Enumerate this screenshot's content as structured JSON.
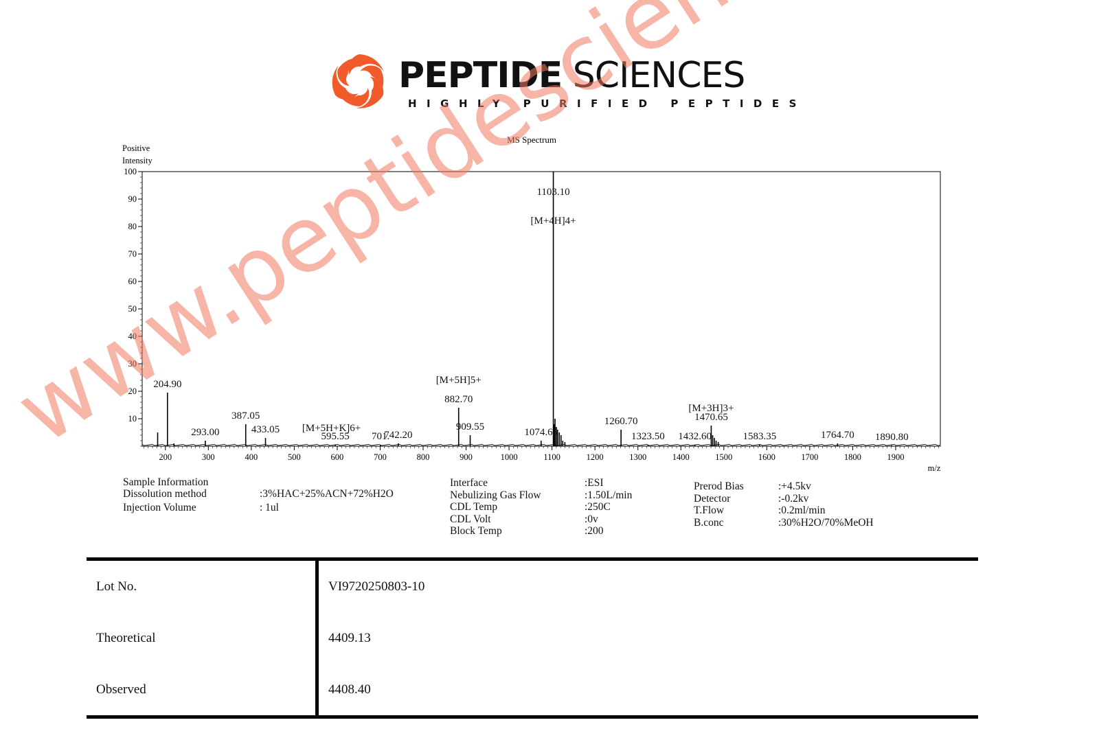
{
  "header": {
    "brand_bold": "PEPTIDE",
    "brand_light": "SCIENCES",
    "tagline": "HIGHLY PURIFIED PEPTIDES",
    "brand_color": "#f15a2b"
  },
  "chart_data": {
    "type": "line",
    "title": "MS Spectrum",
    "ylabel_line1": "Positive",
    "ylabel_line2": "Intensity",
    "xlabel": "m/z",
    "xlim": [
      146,
      2004
    ],
    "ylim": [
      0,
      100
    ],
    "xticks": [
      200,
      300,
      400,
      500,
      600,
      700,
      800,
      900,
      1000,
      1100,
      1200,
      1300,
      1400,
      1500,
      1600,
      1700,
      1800,
      1900
    ],
    "yticks": [
      10,
      20,
      30,
      40,
      50,
      60,
      70,
      80,
      90,
      100
    ],
    "peaks": [
      {
        "mz": 182,
        "intensity": 5
      },
      {
        "mz": 204.9,
        "intensity": 19.5,
        "label": "204.90"
      },
      {
        "mz": 220,
        "intensity": 1
      },
      {
        "mz": 293.0,
        "intensity": 2,
        "label": "293.00"
      },
      {
        "mz": 387.05,
        "intensity": 8,
        "label": "387.05"
      },
      {
        "mz": 433.05,
        "intensity": 3,
        "label": "433.05"
      },
      {
        "mz": 595.55,
        "intensity": 0.5,
        "label": "595.55"
      },
      {
        "mz": 701,
        "intensity": 0.5,
        "label": "701."
      },
      {
        "mz": 742.2,
        "intensity": 1,
        "label": "742.20",
        "ion": "[M+5H+K]6+"
      },
      {
        "mz": 882.7,
        "intensity": 14,
        "label": "882.70",
        "ion": "[M+5H]5+"
      },
      {
        "mz": 909.55,
        "intensity": 4,
        "label": "909.55"
      },
      {
        "mz": 1074.65,
        "intensity": 2,
        "label": "1074.65"
      },
      {
        "mz": 1103.1,
        "intensity": 100,
        "label": "1103.10",
        "ion": "[M+4H]4+"
      },
      {
        "mz": 1105,
        "intensity": 8
      },
      {
        "mz": 1107,
        "intensity": 10
      },
      {
        "mz": 1110,
        "intensity": 7
      },
      {
        "mz": 1113,
        "intensity": 6
      },
      {
        "mz": 1117,
        "intensity": 5
      },
      {
        "mz": 1121,
        "intensity": 4
      },
      {
        "mz": 1125,
        "intensity": 2
      },
      {
        "mz": 1130,
        "intensity": 1.5
      },
      {
        "mz": 1260.7,
        "intensity": 6,
        "label": "1260.70"
      },
      {
        "mz": 1323.5,
        "intensity": 0.5,
        "label": "1323.50"
      },
      {
        "mz": 1432.6,
        "intensity": 0.5,
        "label": "1432.60"
      },
      {
        "mz": 1470.65,
        "intensity": 7.5,
        "label": "1470.65",
        "ion": "[M+3H]3+"
      },
      {
        "mz": 1474,
        "intensity": 4
      },
      {
        "mz": 1478,
        "intensity": 3
      },
      {
        "mz": 1482,
        "intensity": 2
      },
      {
        "mz": 1487,
        "intensity": 1.5
      },
      {
        "mz": 1583.35,
        "intensity": 0.5,
        "label": "1583.35"
      },
      {
        "mz": 1764.7,
        "intensity": 1,
        "label": "1764.70"
      },
      {
        "mz": 1890.8,
        "intensity": 0.3,
        "label": "1890.80"
      }
    ]
  },
  "sample_info": {
    "heading": "Sample Information",
    "rows": [
      {
        "label": "Dissolution method",
        "value": ":3%HAC+25%ACN+72%H2O"
      },
      {
        "label": "Injection Volume",
        "value": ": 1ul"
      }
    ]
  },
  "instrument_1": [
    {
      "label": "Interface",
      "value": ":ESI"
    },
    {
      "label": "Nebulizing Gas Flow",
      "value": ":1.50L/min"
    },
    {
      "label": "CDL Temp",
      "value": ":250C"
    },
    {
      "label": "CDL Volt",
      "value": ":0v"
    },
    {
      "label": "Block Temp",
      "value": ":200"
    }
  ],
  "instrument_2": [
    {
      "label": "Prerod Bias",
      "value": ":+4.5kv"
    },
    {
      "label": "Detector",
      "value": ":-0.2kv"
    },
    {
      "label": "T.Flow",
      "value": ":0.2ml/min"
    },
    {
      "label": "B.conc",
      "value": ":30%H2O/70%MeOH"
    }
  ],
  "results": [
    {
      "label": "Lot No.",
      "value": "VI9720250803-10"
    },
    {
      "label": "Theoretical",
      "value": "4409.13"
    },
    {
      "label": "Observed",
      "value": "4408.40"
    }
  ],
  "watermark": "www.peptidesciences.com"
}
